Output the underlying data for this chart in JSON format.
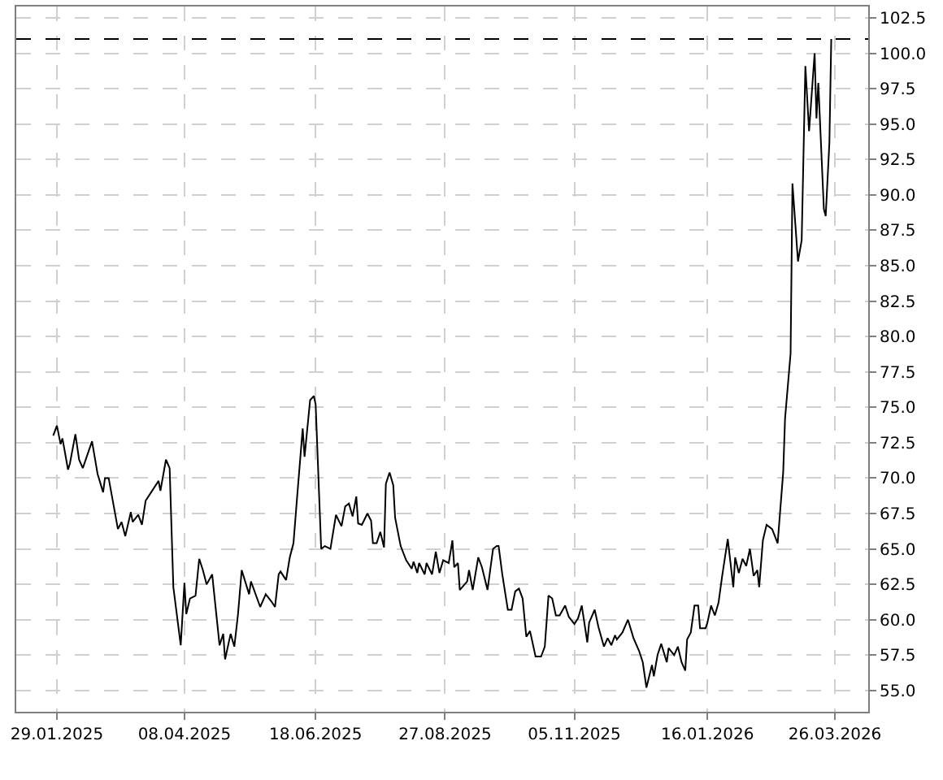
{
  "chart_data": {
    "type": "line",
    "x": [
      "2025-01-27",
      "2025-01-29",
      "2025-01-31",
      "2025-02-01",
      "2025-02-04",
      "2025-02-05",
      "2025-02-08",
      "2025-02-10",
      "2025-02-12",
      "2025-02-17",
      "2025-02-20",
      "2025-02-23",
      "2025-02-24",
      "2025-02-26",
      "2025-03-03",
      "2025-03-05",
      "2025-03-07",
      "2025-03-10",
      "2025-03-11",
      "2025-03-14",
      "2025-03-16",
      "2025-03-18",
      "2025-03-22",
      "2025-03-25",
      "2025-03-26",
      "2025-03-29",
      "2025-03-31",
      "2025-04-02",
      "2025-04-06",
      "2025-04-08",
      "2025-04-09",
      "2025-04-11",
      "2025-04-14",
      "2025-04-16",
      "2025-04-18",
      "2025-04-20",
      "2025-04-23",
      "2025-04-27",
      "2025-04-29",
      "2025-04-30",
      "2025-05-03",
      "2025-05-05",
      "2025-05-07",
      "2025-05-09",
      "2025-05-13",
      "2025-05-14",
      "2025-05-19",
      "2025-05-22",
      "2025-05-25",
      "2025-05-27",
      "2025-05-29",
      "2025-05-30",
      "2025-06-02",
      "2025-06-04",
      "2025-06-06",
      "2025-06-08",
      "2025-06-11",
      "2025-06-12",
      "2025-06-15",
      "2025-06-17",
      "2025-06-18",
      "2025-06-21",
      "2025-06-23",
      "2025-06-26",
      "2025-06-29",
      "2025-07-02",
      "2025-07-04",
      "2025-07-06",
      "2025-07-08",
      "2025-07-10",
      "2025-07-11",
      "2025-07-13",
      "2025-07-16",
      "2025-07-18",
      "2025-07-19",
      "2025-07-21",
      "2025-07-23",
      "2025-07-25",
      "2025-07-26",
      "2025-07-28",
      "2025-07-30",
      "2025-07-31",
      "2025-08-03",
      "2025-08-06",
      "2025-08-09",
      "2025-08-10",
      "2025-08-12",
      "2025-08-13",
      "2025-08-16",
      "2025-08-17",
      "2025-08-20",
      "2025-08-22",
      "2025-08-24",
      "2025-08-26",
      "2025-08-29",
      "2025-08-31",
      "2025-09-01",
      "2025-09-03",
      "2025-09-04",
      "2025-09-08",
      "2025-09-09",
      "2025-09-11",
      "2025-09-14",
      "2025-09-16",
      "2025-09-19",
      "2025-09-22",
      "2025-09-24",
      "2025-09-25",
      "2025-09-27",
      "2025-09-30",
      "2025-10-02",
      "2025-10-04",
      "2025-10-06",
      "2025-10-08",
      "2025-10-10",
      "2025-10-12",
      "2025-10-13",
      "2025-10-15",
      "2025-10-18",
      "2025-10-20",
      "2025-10-22",
      "2025-10-24",
      "2025-10-26",
      "2025-10-28",
      "2025-10-31",
      "2025-11-02",
      "2025-11-05",
      "2025-11-07",
      "2025-11-09",
      "2025-11-12",
      "2025-11-13",
      "2025-11-16",
      "2025-11-18",
      "2025-11-21",
      "2025-11-23",
      "2025-11-25",
      "2025-11-27",
      "2025-11-28",
      "2025-12-01",
      "2025-12-04",
      "2025-12-07",
      "2025-12-10",
      "2025-12-12",
      "2025-12-14",
      "2025-12-17",
      "2025-12-18",
      "2025-12-20",
      "2025-12-22",
      "2025-12-25",
      "2025-12-26",
      "2025-12-29",
      "2025-12-31",
      "2026-01-02",
      "2026-01-04",
      "2026-01-05",
      "2026-01-07",
      "2026-01-09",
      "2026-01-11",
      "2026-01-12",
      "2026-01-15",
      "2026-01-16",
      "2026-01-18",
      "2026-01-20",
      "2026-01-22",
      "2026-01-24",
      "2026-01-27",
      "2026-01-30",
      "2026-01-31",
      "2026-02-02",
      "2026-02-04",
      "2026-02-06",
      "2026-02-08",
      "2026-02-10",
      "2026-02-12",
      "2026-02-13",
      "2026-02-15",
      "2026-02-17",
      "2026-02-20",
      "2026-02-23",
      "2026-02-26",
      "2026-02-27",
      "2026-03-02",
      "2026-03-03",
      "2026-03-06",
      "2026-03-08",
      "2026-03-10",
      "2026-03-12",
      "2026-03-15",
      "2026-03-16",
      "2026-03-17",
      "2026-03-20",
      "2026-03-21",
      "2026-03-23",
      "2026-03-24"
    ],
    "series": [
      {
        "color": "#000000",
        "values": [
          73.0,
          73.7,
          72.4,
          72.8,
          70.6,
          71.0,
          73.1,
          71.3,
          70.7,
          72.6,
          70.3,
          69.0,
          70.0,
          70.0,
          66.4,
          66.9,
          65.9,
          67.6,
          66.9,
          67.4,
          66.7,
          68.4,
          69.2,
          69.8,
          69.1,
          71.3,
          70.7,
          62.3,
          58.2,
          62.6,
          60.4,
          61.5,
          61.7,
          64.3,
          63.5,
          62.5,
          63.2,
          58.2,
          59.0,
          57.2,
          59.0,
          58.1,
          60.4,
          63.5,
          61.8,
          62.7,
          60.9,
          61.8,
          61.3,
          60.9,
          63.2,
          63.4,
          62.8,
          64.4,
          65.4,
          68.7,
          73.5,
          71.5,
          75.5,
          75.8,
          75.2,
          65.0,
          65.2,
          65.0,
          67.4,
          66.6,
          68.0,
          68.2,
          67.3,
          68.7,
          66.8,
          66.7,
          67.5,
          67.0,
          65.4,
          65.4,
          66.2,
          65.1,
          69.6,
          70.4,
          69.5,
          67.2,
          65.2,
          64.2,
          63.6,
          64.1,
          63.3,
          64.0,
          63.2,
          64.0,
          63.2,
          64.8,
          63.3,
          64.2,
          64.0,
          65.6,
          63.7,
          64.0,
          62.1,
          62.7,
          63.5,
          62.1,
          64.4,
          63.7,
          62.1,
          65.0,
          65.2,
          65.2,
          63.2,
          60.7,
          60.7,
          62.0,
          62.2,
          61.5,
          58.8,
          59.2,
          58.6,
          57.4,
          57.4,
          58.1,
          61.7,
          61.5,
          60.3,
          60.3,
          61.0,
          60.2,
          59.7,
          60.1,
          61.0,
          58.4,
          59.8,
          60.7,
          59.5,
          58.1,
          58.7,
          58.2,
          58.9,
          58.6,
          59.1,
          60.0,
          58.7,
          57.8,
          57.0,
          55.2,
          56.8,
          56.0,
          57.5,
          58.3,
          57.0,
          58.0,
          57.5,
          58.1,
          57.0,
          56.4,
          58.6,
          59.1,
          61.0,
          61.0,
          59.4,
          59.4,
          59.8,
          61.0,
          60.3,
          61.2,
          63.1,
          65.7,
          62.3,
          64.4,
          63.3,
          64.3,
          63.8,
          65.0,
          63.1,
          63.5,
          62.3,
          65.6,
          66.7,
          66.4,
          65.4,
          70.4,
          74.2,
          78.8,
          90.8,
          85.3,
          86.8,
          99.1,
          94.5,
          100.0,
          95.4,
          97.9,
          89.0,
          88.5,
          93.7,
          101.0
        ]
      }
    ],
    "xlim": [
      "2025-01-07",
      "2026-04-13"
    ],
    "xticks": [
      {
        "value": "2025-01-29",
        "label": "29.01.2025"
      },
      {
        "value": "2025-04-08",
        "label": "08.04.2025"
      },
      {
        "value": "2025-06-18",
        "label": "18.06.2025"
      },
      {
        "value": "2025-08-27",
        "label": "27.08.2025"
      },
      {
        "value": "2025-11-05",
        "label": "05.11.2025"
      },
      {
        "value": "2026-01-16",
        "label": "16.01.2026"
      },
      {
        "value": "2026-03-26",
        "label": "26.03.2026"
      }
    ],
    "ylim": [
      53.5,
      103.3
    ],
    "yticks": [
      {
        "value": 55,
        "label": "55.0"
      },
      {
        "value": 57.5,
        "label": "57.5"
      },
      {
        "value": 60,
        "label": "60.0"
      },
      {
        "value": 62.5,
        "label": "62.5"
      },
      {
        "value": 65,
        "label": "65.0"
      },
      {
        "value": 67.5,
        "label": "67.5"
      },
      {
        "value": 70,
        "label": "70.0"
      },
      {
        "value": 72.5,
        "label": "72.5"
      },
      {
        "value": 75,
        "label": "75.0"
      },
      {
        "value": 77.5,
        "label": "77.5"
      },
      {
        "value": 80,
        "label": "80.0"
      },
      {
        "value": 82.5,
        "label": "82.5"
      },
      {
        "value": 85,
        "label": "85.0"
      },
      {
        "value": 87.5,
        "label": "87.5"
      },
      {
        "value": 90,
        "label": "90.0"
      },
      {
        "value": 92.5,
        "label": "92.5"
      },
      {
        "value": 95,
        "label": "95.0"
      },
      {
        "value": 97.5,
        "label": "97.5"
      },
      {
        "value": 100,
        "label": "100.0"
      },
      {
        "value": 102.5,
        "label": "102.5"
      }
    ],
    "ref_lines": [
      {
        "axis": "y",
        "value": 101.0,
        "color": "#000000",
        "line_style": "dashed"
      }
    ],
    "grid": true,
    "marker": "none",
    "line_style": "solid"
  }
}
